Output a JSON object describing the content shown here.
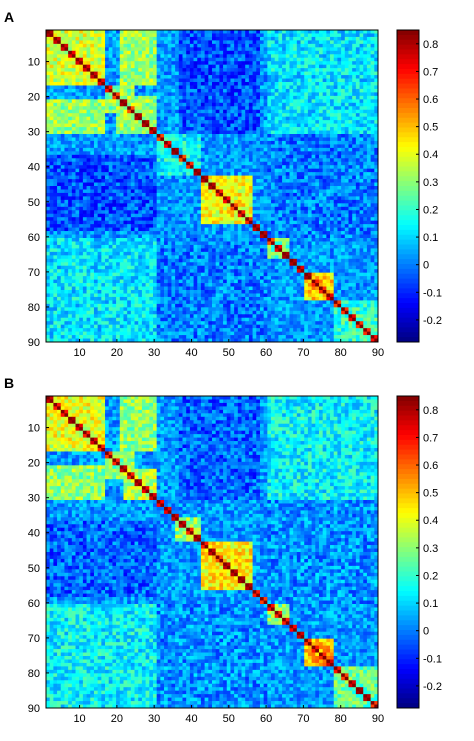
{
  "chart_data": [
    {
      "type": "heatmap",
      "panel_label": "A",
      "matrix_size": 90,
      "x_ticks": [
        10,
        20,
        30,
        40,
        50,
        60,
        70,
        80,
        90
      ],
      "y_ticks": [
        10,
        20,
        30,
        40,
        50,
        60,
        70,
        80,
        90
      ],
      "xlim": [
        1,
        90
      ],
      "ylim": [
        1,
        90
      ],
      "y_direction": "top-to-bottom",
      "colorbar": {
        "range": [
          -0.28,
          0.85
        ],
        "ticks": [
          0.8,
          0.7,
          0.6,
          0.5,
          0.4,
          0.3,
          0.2,
          0.1,
          0,
          -0.1,
          -0.2
        ],
        "colormap": "jet"
      },
      "diagonal_value": 0.85,
      "blocks": [
        {
          "rows": [
            1,
            16
          ],
          "cols": [
            1,
            16
          ],
          "value": 0.38
        },
        {
          "rows": [
            17,
            24
          ],
          "cols": [
            17,
            24
          ],
          "value": 0.3
        },
        {
          "rows": [
            20,
            30
          ],
          "cols": [
            20,
            30
          ],
          "value": 0.32
        },
        {
          "rows": [
            43,
            56
          ],
          "cols": [
            43,
            56
          ],
          "value": 0.42
        },
        {
          "rows": [
            60,
            66
          ],
          "cols": [
            60,
            66
          ],
          "value": 0.25
        },
        {
          "rows": [
            71,
            78
          ],
          "cols": [
            71,
            78
          ],
          "value": 0.48
        },
        {
          "rows": [
            79,
            90
          ],
          "cols": [
            79,
            90
          ],
          "value": 0.2
        },
        {
          "rows": [
            1,
            16
          ],
          "cols": [
            21,
            30
          ],
          "value": 0.32
        },
        {
          "rows": [
            1,
            16
          ],
          "cols": [
            61,
            90
          ],
          "value": 0.18
        },
        {
          "rows": [
            31,
            42
          ],
          "cols": [
            31,
            42
          ],
          "value": 0.15
        },
        {
          "rows": [
            1,
            30
          ],
          "cols": [
            37,
            58
          ],
          "value": -0.05
        },
        {
          "rows": [
            31,
            60
          ],
          "cols": [
            61,
            90
          ],
          "value": 0.0
        },
        {
          "rows": [
            61,
            90
          ],
          "cols": [
            1,
            30
          ],
          "value": 0.12
        }
      ]
    },
    {
      "type": "heatmap",
      "panel_label": "B",
      "matrix_size": 90,
      "x_ticks": [
        10,
        20,
        30,
        40,
        50,
        60,
        70,
        80,
        90
      ],
      "y_ticks": [
        10,
        20,
        30,
        40,
        50,
        60,
        70,
        80,
        90
      ],
      "xlim": [
        1,
        90
      ],
      "ylim": [
        1,
        90
      ],
      "y_direction": "top-to-bottom",
      "colorbar": {
        "range": [
          -0.28,
          0.85
        ],
        "ticks": [
          0.8,
          0.7,
          0.6,
          0.5,
          0.4,
          0.3,
          0.2,
          0.1,
          0,
          -0.1,
          -0.2
        ],
        "colormap": "jet"
      },
      "diagonal_value": 0.85,
      "blocks": [
        {
          "rows": [
            1,
            16
          ],
          "cols": [
            1,
            16
          ],
          "value": 0.4
        },
        {
          "rows": [
            17,
            24
          ],
          "cols": [
            17,
            24
          ],
          "value": 0.28
        },
        {
          "rows": [
            22,
            30
          ],
          "cols": [
            22,
            30
          ],
          "value": 0.35
        },
        {
          "rows": [
            36,
            42
          ],
          "cols": [
            36,
            42
          ],
          "value": 0.3
        },
        {
          "rows": [
            43,
            56
          ],
          "cols": [
            43,
            56
          ],
          "value": 0.44
        },
        {
          "rows": [
            59,
            66
          ],
          "cols": [
            59,
            66
          ],
          "value": 0.3
        },
        {
          "rows": [
            71,
            78
          ],
          "cols": [
            71,
            78
          ],
          "value": 0.5
        },
        {
          "rows": [
            79,
            90
          ],
          "cols": [
            79,
            90
          ],
          "value": 0.25
        },
        {
          "rows": [
            1,
            16
          ],
          "cols": [
            21,
            30
          ],
          "value": 0.3
        },
        {
          "rows": [
            1,
            16
          ],
          "cols": [
            61,
            90
          ],
          "value": 0.2
        },
        {
          "rows": [
            1,
            30
          ],
          "cols": [
            37,
            58
          ],
          "value": -0.03
        },
        {
          "rows": [
            31,
            60
          ],
          "cols": [
            61,
            90
          ],
          "value": 0.02
        },
        {
          "rows": [
            61,
            90
          ],
          "cols": [
            1,
            30
          ],
          "value": 0.14
        }
      ]
    }
  ]
}
